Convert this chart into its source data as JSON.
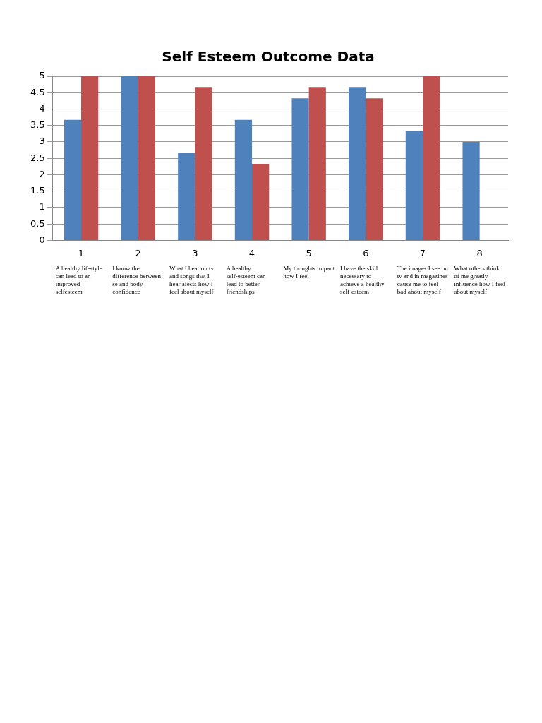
{
  "chart_data": {
    "type": "bar",
    "title": "Self Esteem Outcome Data",
    "categories": [
      "1",
      "2",
      "3",
      "4",
      "5",
      "6",
      "7",
      "8"
    ],
    "series": [
      {
        "color": "#4f81bd",
        "values": [
          3.67,
          5,
          2.67,
          3.67,
          4.33,
          4.67,
          3.33,
          3
        ]
      },
      {
        "color": "#c0504d",
        "values": [
          5,
          5,
          4.67,
          2.33,
          4.67,
          4.33,
          5,
          null
        ]
      }
    ],
    "ylim": [
      0,
      5
    ],
    "yticks": [
      0,
      0.5,
      1,
      1.5,
      2,
      2.5,
      3,
      3.5,
      4,
      4.5,
      5
    ],
    "grid": "y",
    "legend": false,
    "annotations": [
      "A healthy lifestyle can lead to an improved selfesteem",
      "I know the difference between se and body confidence",
      "What I hear on tv and songs that I hear afects how I feel about myself",
      "A healthy self-esteem can lead to better friendships",
      "My thoughts impact how I feel",
      "I have the skill necessary to achieve a healthy self-esteem",
      "The images I see on tv and in magazines cause me to feel bad about myself",
      "What others think of me greatly influence how I feel about myself"
    ]
  }
}
